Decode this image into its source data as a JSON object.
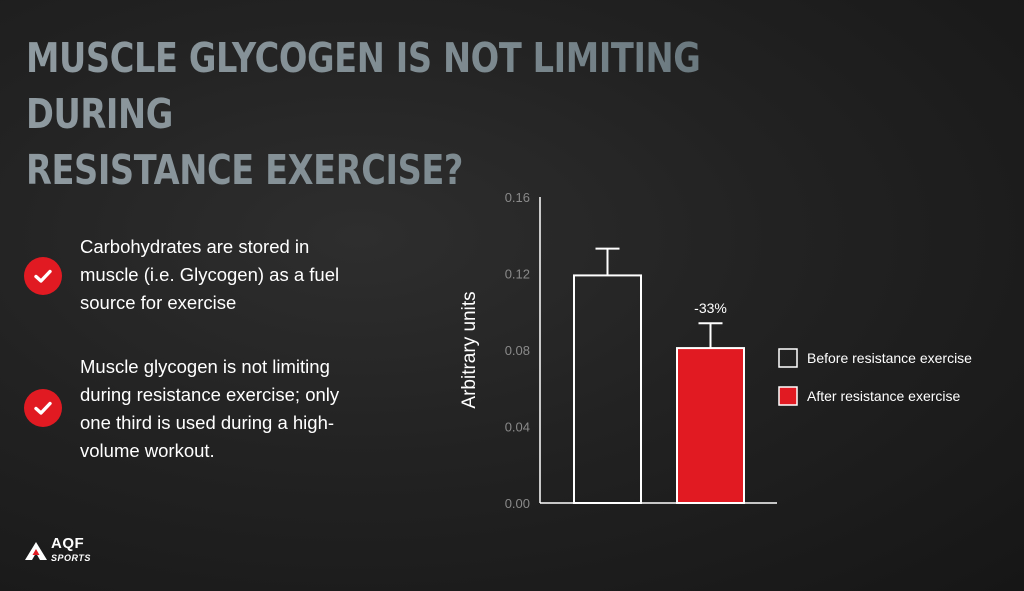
{
  "title": {
    "line1": "MUSCLE GLYCOGEN IS NOT LIMITING DURING",
    "line2": "RESISTANCE EXERCISE?"
  },
  "bullets": [
    {
      "icon": "check-circle-icon",
      "text": "Carbohydrates are stored in muscle (i.e. Glycogen) as a fuel source for exercise"
    },
    {
      "icon": "check-circle-icon",
      "text": "Muscle glycogen is not limiting during resistance exercise; only one third is used during a high-volume workout."
    }
  ],
  "logo": {
    "brand": "AQF",
    "sub": "SPORTS"
  },
  "colors": {
    "accent": "#e11a22",
    "title": "#8f9aa0",
    "background": "#222222"
  },
  "chart_data": {
    "type": "bar",
    "ylabel": "Arbitrary units",
    "ylim": [
      0,
      0.16
    ],
    "yticks": [
      "0.00",
      "0.04",
      "0.08",
      "0.12",
      "0.16"
    ],
    "grid": false,
    "legend_position": "right",
    "series": [
      {
        "name": "Before resistance exercise",
        "value": 0.119,
        "error": 0.014,
        "fill": "none",
        "stroke": "#ffffff"
      },
      {
        "name": "After resistance exercise",
        "value": 0.081,
        "error": 0.013,
        "fill": "#e11a22",
        "stroke": "#ffffff",
        "annotation": "-33%"
      }
    ]
  }
}
